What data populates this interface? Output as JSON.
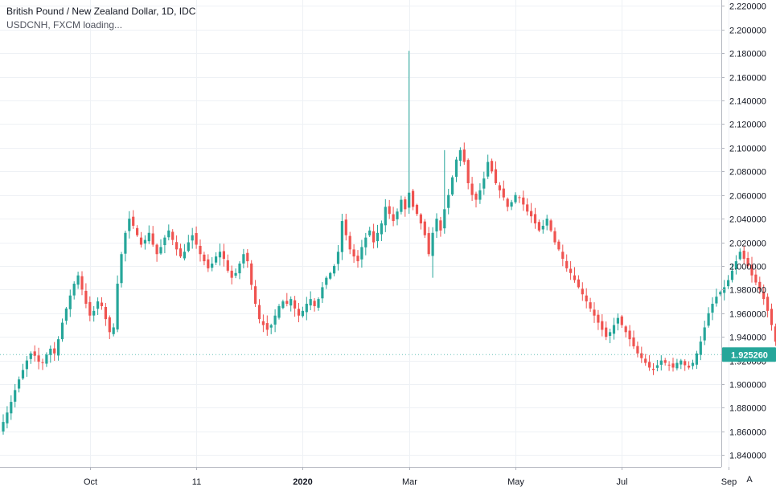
{
  "legend": {
    "title": "British Pound / New Zealand Dollar, 1D, IDC",
    "subtitle": "USDCNH, FXCM loading..."
  },
  "axis_button": "A",
  "colors": {
    "up": "#26a69a",
    "down": "#ef5350",
    "last_price_bg": "#26a69a",
    "grid": "#eef1f5"
  },
  "chart_data": {
    "type": "candlestick",
    "title": "British Pound / New Zealand Dollar, 1D, IDC",
    "ylim": [
      1.83,
      2.225
    ],
    "y_ticks": [
      1.84,
      1.86,
      1.88,
      1.9,
      1.92,
      1.94,
      1.96,
      1.98,
      2.0,
      2.02,
      2.04,
      2.06,
      2.08,
      2.1,
      2.12,
      2.14,
      2.16,
      2.18,
      2.2,
      2.22
    ],
    "y_tick_labels": [
      "1.840000",
      "1.860000",
      "1.880000",
      "1.900000",
      "1.920000",
      "1.940000",
      "1.960000",
      "1.980000",
      "2.000000",
      "2.020000",
      "2.040000",
      "2.060000",
      "2.080000",
      "2.100000",
      "2.120000",
      "2.140000",
      "2.160000",
      "2.180000",
      "2.200000",
      "2.220000"
    ],
    "x_ticks": [
      {
        "label": "Oct",
        "bar": 22,
        "bold": false
      },
      {
        "label": "11",
        "bar": 49,
        "bold": false
      },
      {
        "label": "2020",
        "bar": 76,
        "bold": true
      },
      {
        "label": "Mar",
        "bar": 103,
        "bold": false
      },
      {
        "label": "May",
        "bar": 130,
        "bold": false
      },
      {
        "label": "Jul",
        "bar": 157,
        "bold": false
      },
      {
        "label": "Sep",
        "bar": 184,
        "bold": false
      }
    ],
    "last_price": "1.925260",
    "closes": [
      1.868,
      1.876,
      1.885,
      1.895,
      1.904,
      1.912,
      1.92,
      1.926,
      1.924,
      1.919,
      1.918,
      1.925,
      1.93,
      1.926,
      1.938,
      1.952,
      1.964,
      1.975,
      1.985,
      1.992,
      1.98,
      1.968,
      1.958,
      1.962,
      1.97,
      1.966,
      1.955,
      1.944,
      1.948,
      1.985,
      2.01,
      2.028,
      2.04,
      2.034,
      2.026,
      2.018,
      2.022,
      2.028,
      2.018,
      2.01,
      2.016,
      2.024,
      2.03,
      2.022,
      2.014,
      2.008,
      2.012,
      2.02,
      2.026,
      2.018,
      2.01,
      2.004,
      1.998,
      2.002,
      2.008,
      2.012,
      2.006,
      1.996,
      1.99,
      1.994,
      2.002,
      2.01,
      2.004,
      1.984,
      1.968,
      1.955,
      1.95,
      1.946,
      1.95,
      1.958,
      1.966,
      1.97,
      1.968,
      1.972,
      1.964,
      1.958,
      1.962,
      1.968,
      1.972,
      1.966,
      1.972,
      1.982,
      1.99,
      1.994,
      2.0,
      2.012,
      2.038,
      2.026,
      2.014,
      2.008,
      2.004,
      2.016,
      2.024,
      2.03,
      2.02,
      2.028,
      2.036,
      2.05,
      2.044,
      2.038,
      2.046,
      2.056,
      2.048,
      2.062,
      2.05,
      2.044,
      2.036,
      2.026,
      2.01,
      2.028,
      2.04,
      2.03,
      2.048,
      2.06,
      2.075,
      2.09,
      2.098,
      2.088,
      2.07,
      2.06,
      2.056,
      2.064,
      2.074,
      2.088,
      2.08,
      2.07,
      2.064,
      2.058,
      2.05,
      2.054,
      2.06,
      2.058,
      2.052,
      2.046,
      2.042,
      2.036,
      2.03,
      2.034,
      2.04,
      2.03,
      2.02,
      2.014,
      2.006,
      1.998,
      1.994,
      1.988,
      1.982,
      1.976,
      1.97,
      1.964,
      1.958,
      1.952,
      1.946,
      1.94,
      1.944,
      1.95,
      1.956,
      1.95,
      1.944,
      1.938,
      1.932,
      1.926,
      1.922,
      1.918,
      1.914,
      1.912,
      1.916,
      1.92,
      1.918,
      1.916,
      1.914,
      1.918,
      1.92,
      1.916,
      1.914,
      1.918,
      1.926,
      1.936,
      1.948,
      1.96,
      1.968,
      1.974,
      1.978,
      1.982,
      1.988,
      1.996,
      2.004,
      2.012,
      2.006,
      2.0,
      1.992,
      1.986,
      1.98,
      1.972,
      1.962,
      1.95,
      1.936,
      1.922,
      1.916,
      1.92,
      1.925
    ]
  }
}
